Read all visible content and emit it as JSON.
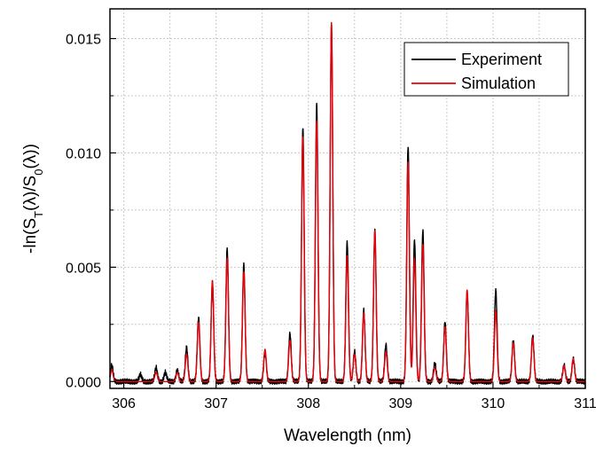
{
  "chart_data": {
    "type": "line",
    "xlabel": "Wavelength (nm)",
    "ylabel": "-ln(S_T(λ)/S_0(λ))",
    "xlim": [
      305.85,
      311.0
    ],
    "ylim": [
      -0.0003,
      0.0163
    ],
    "x_ticks": [
      306,
      307,
      308,
      309,
      310,
      311
    ],
    "x_tick_labels": [
      "306",
      "307",
      "308",
      "309",
      "310",
      "311"
    ],
    "y_ticks": [
      0.0,
      0.005,
      0.01,
      0.015
    ],
    "y_tick_labels": [
      "0.000",
      "0.005",
      "0.010",
      "0.015"
    ],
    "grid": true,
    "legend_position": "top-right",
    "colors": {
      "Experiment": "#000000",
      "Simulation": "#e8000b"
    },
    "series": [
      {
        "name": "Experiment",
        "peaks": [
          [
            305.87,
            0.0007
          ],
          [
            306.18,
            0.0003
          ],
          [
            306.35,
            0.0006
          ],
          [
            306.45,
            0.0004
          ],
          [
            306.58,
            0.0005
          ],
          [
            306.68,
            0.0015
          ],
          [
            306.81,
            0.0028
          ],
          [
            306.96,
            0.0043
          ],
          [
            307.12,
            0.0058
          ],
          [
            307.3,
            0.0051
          ],
          [
            307.53,
            0.0013
          ],
          [
            307.8,
            0.0021
          ],
          [
            307.94,
            0.0111
          ],
          [
            308.09,
            0.0121
          ],
          [
            308.25,
            0.0156
          ],
          [
            308.42,
            0.0061
          ],
          [
            308.5,
            0.0013
          ],
          [
            308.6,
            0.0031
          ],
          [
            308.72,
            0.0066
          ],
          [
            308.84,
            0.0016
          ],
          [
            309.08,
            0.0103
          ],
          [
            309.15,
            0.0062
          ],
          [
            309.24,
            0.0066
          ],
          [
            309.37,
            0.0008
          ],
          [
            309.48,
            0.0026
          ],
          [
            309.72,
            0.0039
          ],
          [
            310.03,
            0.004
          ],
          [
            310.22,
            0.0018
          ],
          [
            310.43,
            0.002
          ],
          [
            310.77,
            0.0007
          ],
          [
            310.87,
            0.001
          ]
        ]
      },
      {
        "name": "Simulation",
        "peaks": [
          [
            305.87,
            0.0005
          ],
          [
            306.35,
            0.0004
          ],
          [
            306.58,
            0.0004
          ],
          [
            306.68,
            0.0012
          ],
          [
            306.81,
            0.0026
          ],
          [
            306.96,
            0.0044
          ],
          [
            307.12,
            0.0054
          ],
          [
            307.3,
            0.0048
          ],
          [
            307.53,
            0.0014
          ],
          [
            307.8,
            0.0018
          ],
          [
            307.94,
            0.0107
          ],
          [
            308.09,
            0.0114
          ],
          [
            308.25,
            0.0157
          ],
          [
            308.42,
            0.0055
          ],
          [
            308.5,
            0.0012
          ],
          [
            308.6,
            0.003
          ],
          [
            308.72,
            0.0066
          ],
          [
            308.84,
            0.0013
          ],
          [
            309.08,
            0.0096
          ],
          [
            309.15,
            0.0054
          ],
          [
            309.24,
            0.006
          ],
          [
            309.37,
            0.0006
          ],
          [
            309.48,
            0.0024
          ],
          [
            309.72,
            0.004
          ],
          [
            310.03,
            0.0031
          ],
          [
            310.22,
            0.0017
          ],
          [
            310.43,
            0.0019
          ],
          [
            310.77,
            0.0007
          ],
          [
            310.87,
            0.001
          ]
        ]
      }
    ]
  }
}
